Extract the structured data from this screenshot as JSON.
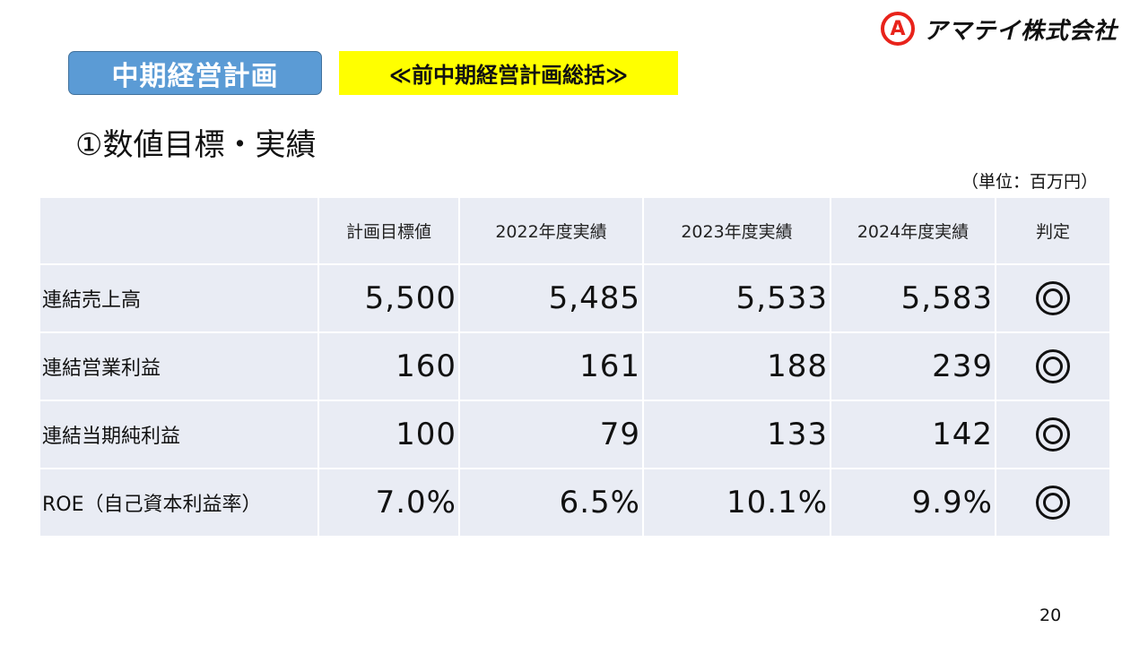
{
  "logo": {
    "mark": "A",
    "company": "アマテイ株式会社"
  },
  "header": {
    "section_tag": "中期経営計画",
    "highlight_tag": "≪前中期経営計画総括≫",
    "subtitle": "①数値目標・実績",
    "unit": "（単位：百万円）"
  },
  "table": {
    "columns": [
      "",
      "計画目標値",
      "2022年度実績",
      "2023年度実績",
      "2024年度実績",
      "判定"
    ],
    "rows": [
      {
        "label": "連結売上高",
        "values": [
          "5,500",
          "5,485",
          "5,533",
          "5,583"
        ],
        "judgement": "◎"
      },
      {
        "label": "連結営業利益",
        "values": [
          "160",
          "161",
          "188",
          "239"
        ],
        "judgement": "◎"
      },
      {
        "label": "連結当期純利益",
        "values": [
          "100",
          "79",
          "133",
          "142"
        ],
        "judgement": "◎"
      },
      {
        "label": "ROE（自己資本利益率）",
        "values": [
          "7.0%",
          "6.5%",
          "10.1%",
          "9.9%"
        ],
        "judgement": "◎"
      }
    ]
  },
  "page_number": "20"
}
